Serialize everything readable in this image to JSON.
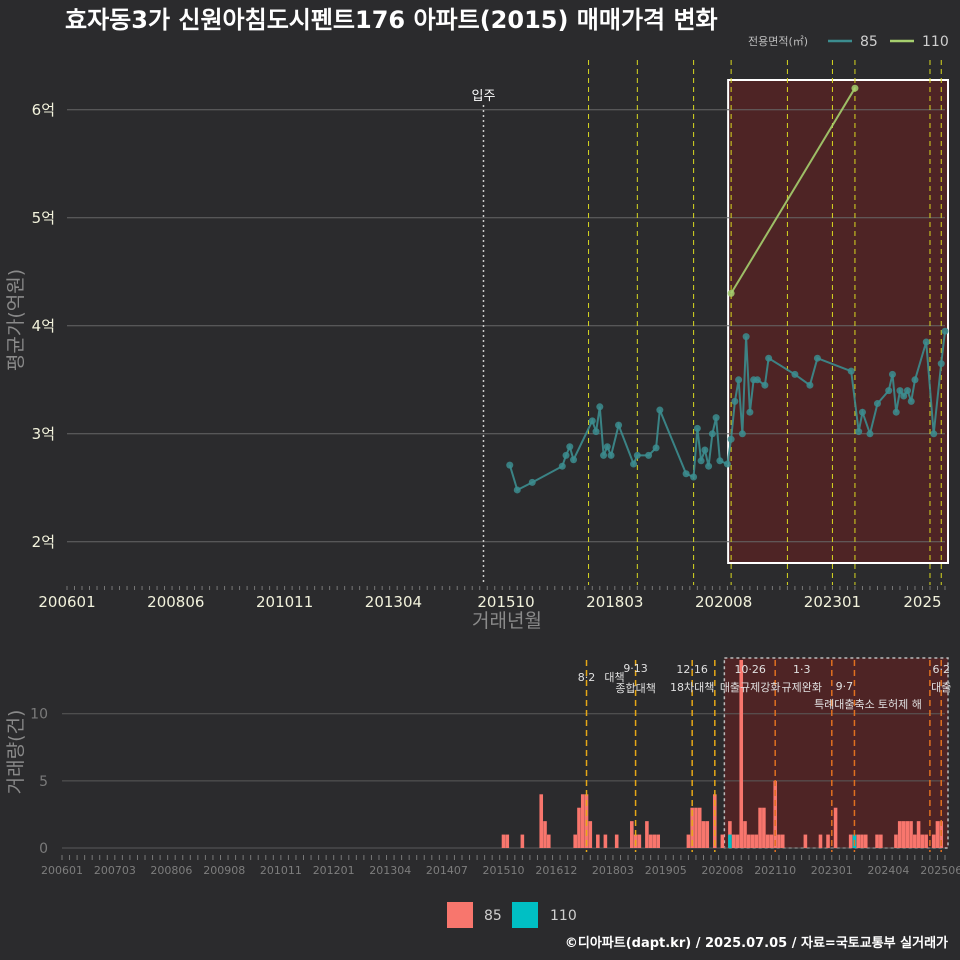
{
  "chart_data": [
    {
      "type": "line",
      "title": "효자동3가 신원아침도시펜트176 아파트(2015) 매매가격 변화",
      "xlabel": "거래년월",
      "ylabel": "평균가(억원)",
      "ylim": [
        1.6,
        6.6
      ],
      "x_range": [
        "2006-01",
        "2025-07"
      ],
      "y_ticks": [
        {
          "value": 2,
          "label": "2억"
        },
        {
          "value": 3,
          "label": "3억"
        },
        {
          "value": 4,
          "label": "4억"
        },
        {
          "value": 5,
          "label": "5억"
        },
        {
          "value": 6,
          "label": "6억"
        }
      ],
      "x_ticks": [
        "200601",
        "200806",
        "201011",
        "201304",
        "201510",
        "201803",
        "202008",
        "202301",
        "2025"
      ],
      "legend_title": "전용면적(㎡)",
      "legend_position": "top-right",
      "occupancy_label": "입주",
      "occupancy_date": "2015-04",
      "highlight_range": [
        "2020-10",
        "2025-07"
      ],
      "policy_dates": [
        "2017-08",
        "2018-09",
        "2019-12",
        "2020-10",
        "2022-01",
        "2023-01",
        "2023-07",
        "2025-03",
        "2025-06"
      ],
      "series": [
        {
          "name": "85",
          "color": "#3c8d8f",
          "points": [
            [
              "2015-11",
              2.71
            ],
            [
              "2016-01",
              2.48
            ],
            [
              "2016-05",
              2.55
            ],
            [
              "2017-01",
              2.7
            ],
            [
              "2017-02",
              2.8
            ],
            [
              "2017-03",
              2.88
            ],
            [
              "2017-04",
              2.76
            ],
            [
              "2017-09",
              3.12
            ],
            [
              "2017-10",
              3.02
            ],
            [
              "2017-11",
              3.25
            ],
            [
              "2017-12",
              2.8
            ],
            [
              "2018-01",
              2.88
            ],
            [
              "2018-02",
              2.8
            ],
            [
              "2018-04",
              3.08
            ],
            [
              "2018-08",
              2.72
            ],
            [
              "2018-09",
              2.8
            ],
            [
              "2018-12",
              2.8
            ],
            [
              "2019-02",
              2.87
            ],
            [
              "2019-03",
              3.22
            ],
            [
              "2019-10",
              2.63
            ],
            [
              "2019-12",
              2.6
            ],
            [
              "2020-01",
              3.05
            ],
            [
              "2020-02",
              2.75
            ],
            [
              "2020-03",
              2.85
            ],
            [
              "2020-04",
              2.7
            ],
            [
              "2020-05",
              3.0
            ],
            [
              "2020-06",
              3.15
            ],
            [
              "2020-07",
              2.75
            ],
            [
              "2020-09",
              2.72
            ],
            [
              "2020-10",
              2.95
            ],
            [
              "2020-11",
              3.3
            ],
            [
              "2020-12",
              3.5
            ],
            [
              "2021-01",
              3.0
            ],
            [
              "2021-02",
              3.9
            ],
            [
              "2021-03",
              3.2
            ],
            [
              "2021-04",
              3.5
            ],
            [
              "2021-05",
              3.5
            ],
            [
              "2021-07",
              3.45
            ],
            [
              "2021-08",
              3.7
            ],
            [
              "2022-03",
              3.55
            ],
            [
              "2022-07",
              3.45
            ],
            [
              "2022-09",
              3.7
            ],
            [
              "2023-06",
              3.58
            ],
            [
              "2023-08",
              3.02
            ],
            [
              "2023-09",
              3.2
            ],
            [
              "2023-11",
              3.0
            ],
            [
              "2024-01",
              3.28
            ],
            [
              "2024-04",
              3.4
            ],
            [
              "2024-05",
              3.55
            ],
            [
              "2024-06",
              3.2
            ],
            [
              "2024-07",
              3.4
            ],
            [
              "2024-08",
              3.35
            ],
            [
              "2024-09",
              3.4
            ],
            [
              "2024-10",
              3.3
            ],
            [
              "2024-11",
              3.5
            ],
            [
              "2025-02",
              3.85
            ],
            [
              "2025-04",
              3.0
            ],
            [
              "2025-06",
              3.65
            ],
            [
              "2025-07",
              3.95
            ]
          ]
        },
        {
          "name": "110",
          "color": "#a6cf6e",
          "points": [
            [
              "2020-10",
              4.3
            ],
            [
              "2023-07",
              6.2
            ]
          ]
        }
      ]
    },
    {
      "type": "bar",
      "xlabel": "",
      "ylabel": "거래량(건)",
      "ylim": [
        0,
        14
      ],
      "y_ticks": [
        {
          "value": 0,
          "label": "0"
        },
        {
          "value": 5,
          "label": "5"
        },
        {
          "value": 10,
          "label": "10"
        }
      ],
      "x_ticks": [
        "200601",
        "200703",
        "200806",
        "200908",
        "201011",
        "201201",
        "201304",
        "201407",
        "201510",
        "201612",
        "201803",
        "201905",
        "202008",
        "202110",
        "202301",
        "202404",
        "202506"
      ],
      "highlight_range": [
        "2020-08",
        "2025-07"
      ],
      "policy_events": [
        {
          "date": "2017-08",
          "date_label": "8·2",
          "name": "대책",
          "color": "#e6a817"
        },
        {
          "date": "2018-09",
          "date_label": "9·13",
          "name": "종합대책",
          "color": "#e6a817"
        },
        {
          "date": "2019-12",
          "date_label": "12·16",
          "name": "18차대책",
          "color": "#e6a817"
        },
        {
          "date": "2020-06",
          "date_label": "",
          "name": "",
          "color": "#e6a817"
        },
        {
          "date": "2021-10",
          "date_label": "10·26",
          "name": "대출규제강화",
          "color": "#e07020"
        },
        {
          "date": "2023-01",
          "date_label": "1·3",
          "name": "규제완화",
          "color": "#e07020"
        },
        {
          "date": "2023-07",
          "date_label": "9·7",
          "name": "특례대출축소",
          "color": "#e07020"
        },
        {
          "date": "2025-03",
          "date_label": "",
          "name": "토허제 해",
          "color": "#e07020"
        },
        {
          "date": "2025-06",
          "date_label": "6·2",
          "name": "대출",
          "color": "#e07020"
        }
      ],
      "series": [
        {
          "name": "85",
          "color": "#f8766d",
          "bars": [
            [
              "2015-10",
              1
            ],
            [
              "2015-11",
              1
            ],
            [
              "2016-03",
              1
            ],
            [
              "2016-08",
              4
            ],
            [
              "2016-09",
              2
            ],
            [
              "2016-10",
              1
            ],
            [
              "2017-05",
              1
            ],
            [
              "2017-06",
              3
            ],
            [
              "2017-07",
              4
            ],
            [
              "2017-08",
              4
            ],
            [
              "2017-09",
              2
            ],
            [
              "2017-11",
              1
            ],
            [
              "2018-01",
              1
            ],
            [
              "2018-04",
              1
            ],
            [
              "2018-08",
              2
            ],
            [
              "2018-09",
              1
            ],
            [
              "2018-10",
              1
            ],
            [
              "2018-12",
              2
            ],
            [
              "2019-01",
              1
            ],
            [
              "2019-02",
              1
            ],
            [
              "2019-03",
              1
            ],
            [
              "2019-11",
              1
            ],
            [
              "2019-12",
              3
            ],
            [
              "2020-01",
              3
            ],
            [
              "2020-02",
              3
            ],
            [
              "2020-03",
              2
            ],
            [
              "2020-04",
              2
            ],
            [
              "2020-06",
              4
            ],
            [
              "2020-08",
              1
            ],
            [
              "2020-10",
              2
            ],
            [
              "2020-11",
              1
            ],
            [
              "2020-12",
              1
            ],
            [
              "2021-01",
              14
            ],
            [
              "2021-02",
              2
            ],
            [
              "2021-03",
              1
            ],
            [
              "2021-04",
              1
            ],
            [
              "2021-05",
              1
            ],
            [
              "2021-06",
              3
            ],
            [
              "2021-07",
              3
            ],
            [
              "2021-08",
              1
            ],
            [
              "2021-09",
              1
            ],
            [
              "2021-10",
              5
            ],
            [
              "2021-11",
              1
            ],
            [
              "2021-12",
              1
            ],
            [
              "2022-06",
              1
            ],
            [
              "2022-10",
              1
            ],
            [
              "2022-12",
              1
            ],
            [
              "2023-02",
              3
            ],
            [
              "2023-06",
              1
            ],
            [
              "2023-08",
              1
            ],
            [
              "2023-09",
              1
            ],
            [
              "2023-10",
              1
            ],
            [
              "2024-01",
              1
            ],
            [
              "2024-02",
              1
            ],
            [
              "2024-06",
              1
            ],
            [
              "2024-07",
              2
            ],
            [
              "2024-08",
              2
            ],
            [
              "2024-09",
              2
            ],
            [
              "2024-10",
              2
            ],
            [
              "2024-11",
              1
            ],
            [
              "2024-12",
              2
            ],
            [
              "2025-01",
              1
            ],
            [
              "2025-02",
              1
            ],
            [
              "2025-04",
              1
            ],
            [
              "2025-05",
              2
            ],
            [
              "2025-06",
              2
            ]
          ]
        },
        {
          "name": "110",
          "color": "#00bfc4",
          "bars": [
            [
              "2020-10",
              1
            ],
            [
              "2023-07",
              1
            ]
          ]
        }
      ]
    }
  ],
  "footer": "©디아파트(dapt.kr) / 2025.07.05 / 자료=국토교통부 실거래가"
}
